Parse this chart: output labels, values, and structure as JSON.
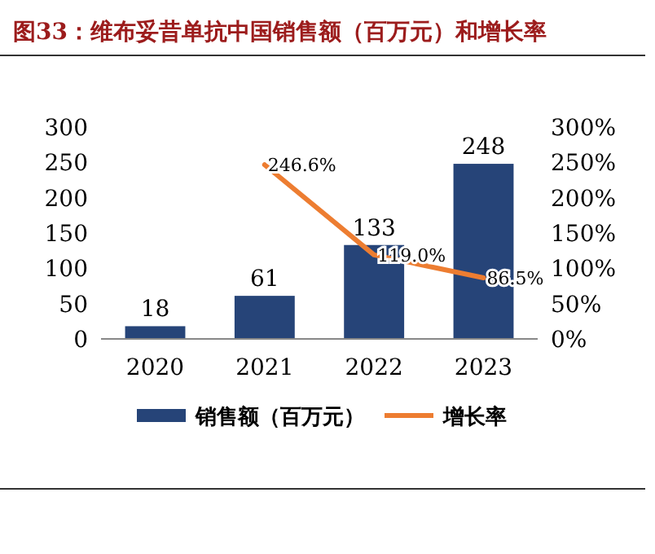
{
  "chart_data": {
    "type": "bar",
    "title": "图33：维布妥昔单抗中国销售额（百万元）和增长率",
    "categories": [
      "2020",
      "2021",
      "2022",
      "2023"
    ],
    "series": [
      {
        "name": "销售额（百万元）",
        "color": "#264478",
        "values": [
          18,
          61,
          133,
          248
        ],
        "value_labels": [
          "18",
          "61",
          "133",
          "248"
        ]
      },
      {
        "name": "增长率",
        "type": "line",
        "axis": "y2",
        "color": "#ed7d31",
        "values": [
          null,
          246.6,
          119.0,
          86.5
        ],
        "value_labels": [
          null,
          "246.6%",
          "119.0%",
          "86.5%"
        ]
      }
    ],
    "ylim": [
      0,
      300
    ],
    "yticks": [
      0,
      50,
      100,
      150,
      200,
      250,
      300
    ],
    "y2lim": [
      0,
      300
    ],
    "y2ticks": [
      {
        "value": 0,
        "label": "0%"
      },
      {
        "value": 50,
        "label": "50%"
      },
      {
        "value": 100,
        "label": "100%"
      },
      {
        "value": 150,
        "label": "150%"
      },
      {
        "value": 200,
        "label": "200%"
      },
      {
        "value": 250,
        "label": "250%"
      },
      {
        "value": 300,
        "label": "300%"
      }
    ],
    "legend": "bottom",
    "marker": "none",
    "line_style": "solid"
  }
}
